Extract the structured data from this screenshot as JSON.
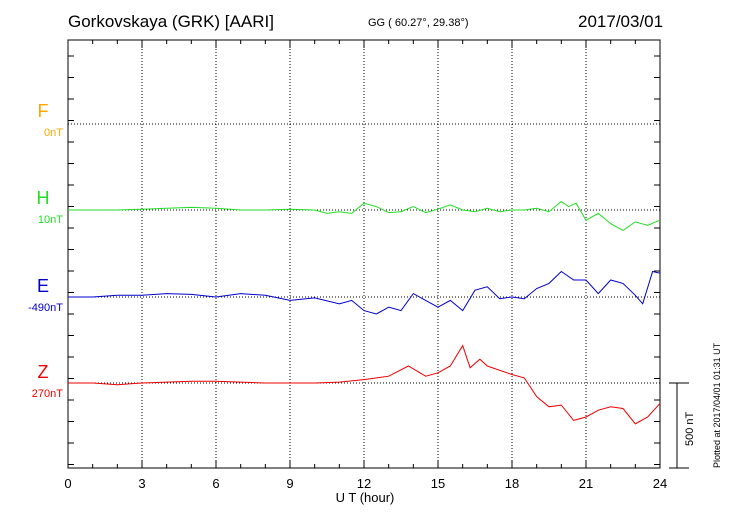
{
  "header": {
    "station": "Gorkovskaya (GRK)  [AARI]",
    "coords": "GG ( 60.27°,  29.38°)",
    "date": "2017/03/01",
    "plotted": "Plotted at 2017/04/01 01:31 UT"
  },
  "chart_data": {
    "type": "line",
    "xlabel": "U T (hour)",
    "xlim": [
      0,
      24
    ],
    "xticks": [
      0,
      3,
      6,
      9,
      12,
      15,
      18,
      21,
      24
    ],
    "scale_bar": "500 nT",
    "colors": {
      "F": "#ffa500",
      "H": "#22dd22",
      "E": "#0000cc",
      "Z": "#ee0000"
    },
    "series": [
      {
        "name": "F",
        "baseline": "0nT",
        "points": []
      },
      {
        "name": "H",
        "baseline": "10nT",
        "x": [
          0,
          1,
          2,
          3,
          4,
          5,
          6,
          7,
          8,
          9,
          10,
          10.5,
          11,
          11.5,
          12,
          12.5,
          13,
          13.5,
          14,
          14.5,
          15,
          15.5,
          16,
          16.5,
          17,
          17.5,
          18,
          18.5,
          19,
          19.5,
          20,
          20.3,
          20.6,
          21,
          21.5,
          22,
          22.5,
          23,
          23.5,
          24
        ],
        "y": [
          0,
          0,
          0,
          5,
          10,
          15,
          10,
          0,
          0,
          5,
          0,
          -20,
          -10,
          -20,
          40,
          20,
          -15,
          -10,
          20,
          -15,
          5,
          30,
          0,
          -10,
          10,
          -10,
          0,
          0,
          10,
          -10,
          50,
          20,
          40,
          -60,
          -20,
          -80,
          -120,
          -70,
          -90,
          -60
        ]
      },
      {
        "name": "E",
        "baseline": "-490nT",
        "x": [
          0,
          1,
          2,
          3,
          4,
          5,
          6,
          7,
          8,
          9,
          10,
          11,
          11.5,
          12,
          12.5,
          13,
          13.5,
          14,
          14.5,
          15,
          15.5,
          16,
          16.5,
          17,
          17.5,
          18,
          18.5,
          19,
          19.5,
          20,
          20.5,
          21,
          21.5,
          22,
          22.5,
          23,
          23.3,
          23.7,
          24
        ],
        "y": [
          0,
          0,
          10,
          10,
          20,
          15,
          0,
          20,
          10,
          -20,
          -5,
          -40,
          -20,
          -80,
          -100,
          -60,
          -80,
          20,
          -20,
          -60,
          -20,
          -80,
          40,
          60,
          -10,
          0,
          -10,
          50,
          80,
          150,
          100,
          100,
          20,
          100,
          80,
          10,
          -40,
          150,
          140
        ]
      },
      {
        "name": "Z",
        "baseline": "270nT",
        "x": [
          0,
          1,
          2,
          3,
          4,
          5,
          6,
          7,
          8,
          9,
          10,
          11,
          12,
          13,
          13.8,
          14.5,
          15,
          15.5,
          16,
          16.3,
          16.7,
          17,
          18,
          18.5,
          19,
          19.5,
          20,
          20.5,
          21,
          21.5,
          22,
          22.5,
          23,
          23.5,
          24
        ],
        "y": [
          0,
          0,
          -10,
          0,
          5,
          10,
          10,
          5,
          0,
          0,
          0,
          5,
          20,
          40,
          100,
          40,
          60,
          100,
          220,
          90,
          140,
          100,
          50,
          30,
          -80,
          -140,
          -130,
          -220,
          -200,
          -160,
          -140,
          -150,
          -240,
          -200,
          -120
        ]
      }
    ]
  }
}
